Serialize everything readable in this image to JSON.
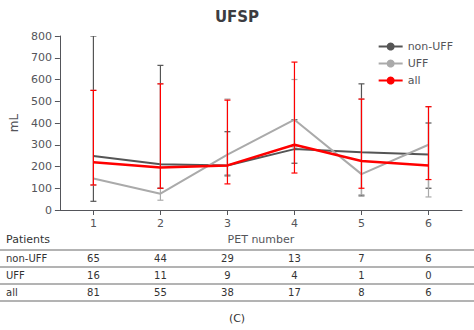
{
  "chart_data": {
    "type": "line",
    "title": "UFSP",
    "xlabel": "PET number",
    "ylabel": "mL",
    "x": [
      1,
      2,
      3,
      4,
      5,
      6
    ],
    "series": [
      {
        "name": "non-UFF",
        "color": "#555555",
        "values": [
          248,
          210,
          205,
          280,
          265,
          255
        ],
        "err_lo": [
          208,
          110,
          45,
          65,
          200,
          155
        ],
        "err_hi": [
          552,
          455,
          155,
          135,
          315,
          145
        ]
      },
      {
        "name": "UFF",
        "color": "#aaaaaa",
        "values": [
          145,
          75,
          255,
          415,
          165,
          300
        ],
        "err_lo": [
          30,
          30,
          100,
          125,
          95,
          240
        ],
        "err_hi": [
          405,
          505,
          255,
          185,
          345,
          175
        ]
      },
      {
        "name": "all",
        "color": "#ff0000",
        "values": [
          220,
          195,
          205,
          300,
          225,
          205
        ],
        "err_lo": [
          105,
          95,
          85,
          130,
          125,
          65
        ],
        "err_hi": [
          330,
          385,
          300,
          380,
          285,
          270
        ]
      }
    ],
    "xlim": [
      0.5,
      6.5
    ],
    "xticks": [
      1,
      2,
      3,
      4,
      5,
      6
    ],
    "ylim": [
      0,
      800
    ],
    "yticks": [
      0,
      100,
      200,
      300,
      400,
      500,
      600,
      700,
      800
    ],
    "legend": "upper right",
    "grid": false,
    "table": {
      "label": "Patients",
      "rows": [
        "non-UFF",
        "UFF",
        "all"
      ],
      "values": [
        [
          65,
          44,
          29,
          13,
          7,
          6
        ],
        [
          16,
          11,
          9,
          4,
          1,
          0
        ],
        [
          81,
          55,
          38,
          17,
          8,
          6
        ]
      ]
    },
    "caption": "(C)"
  }
}
